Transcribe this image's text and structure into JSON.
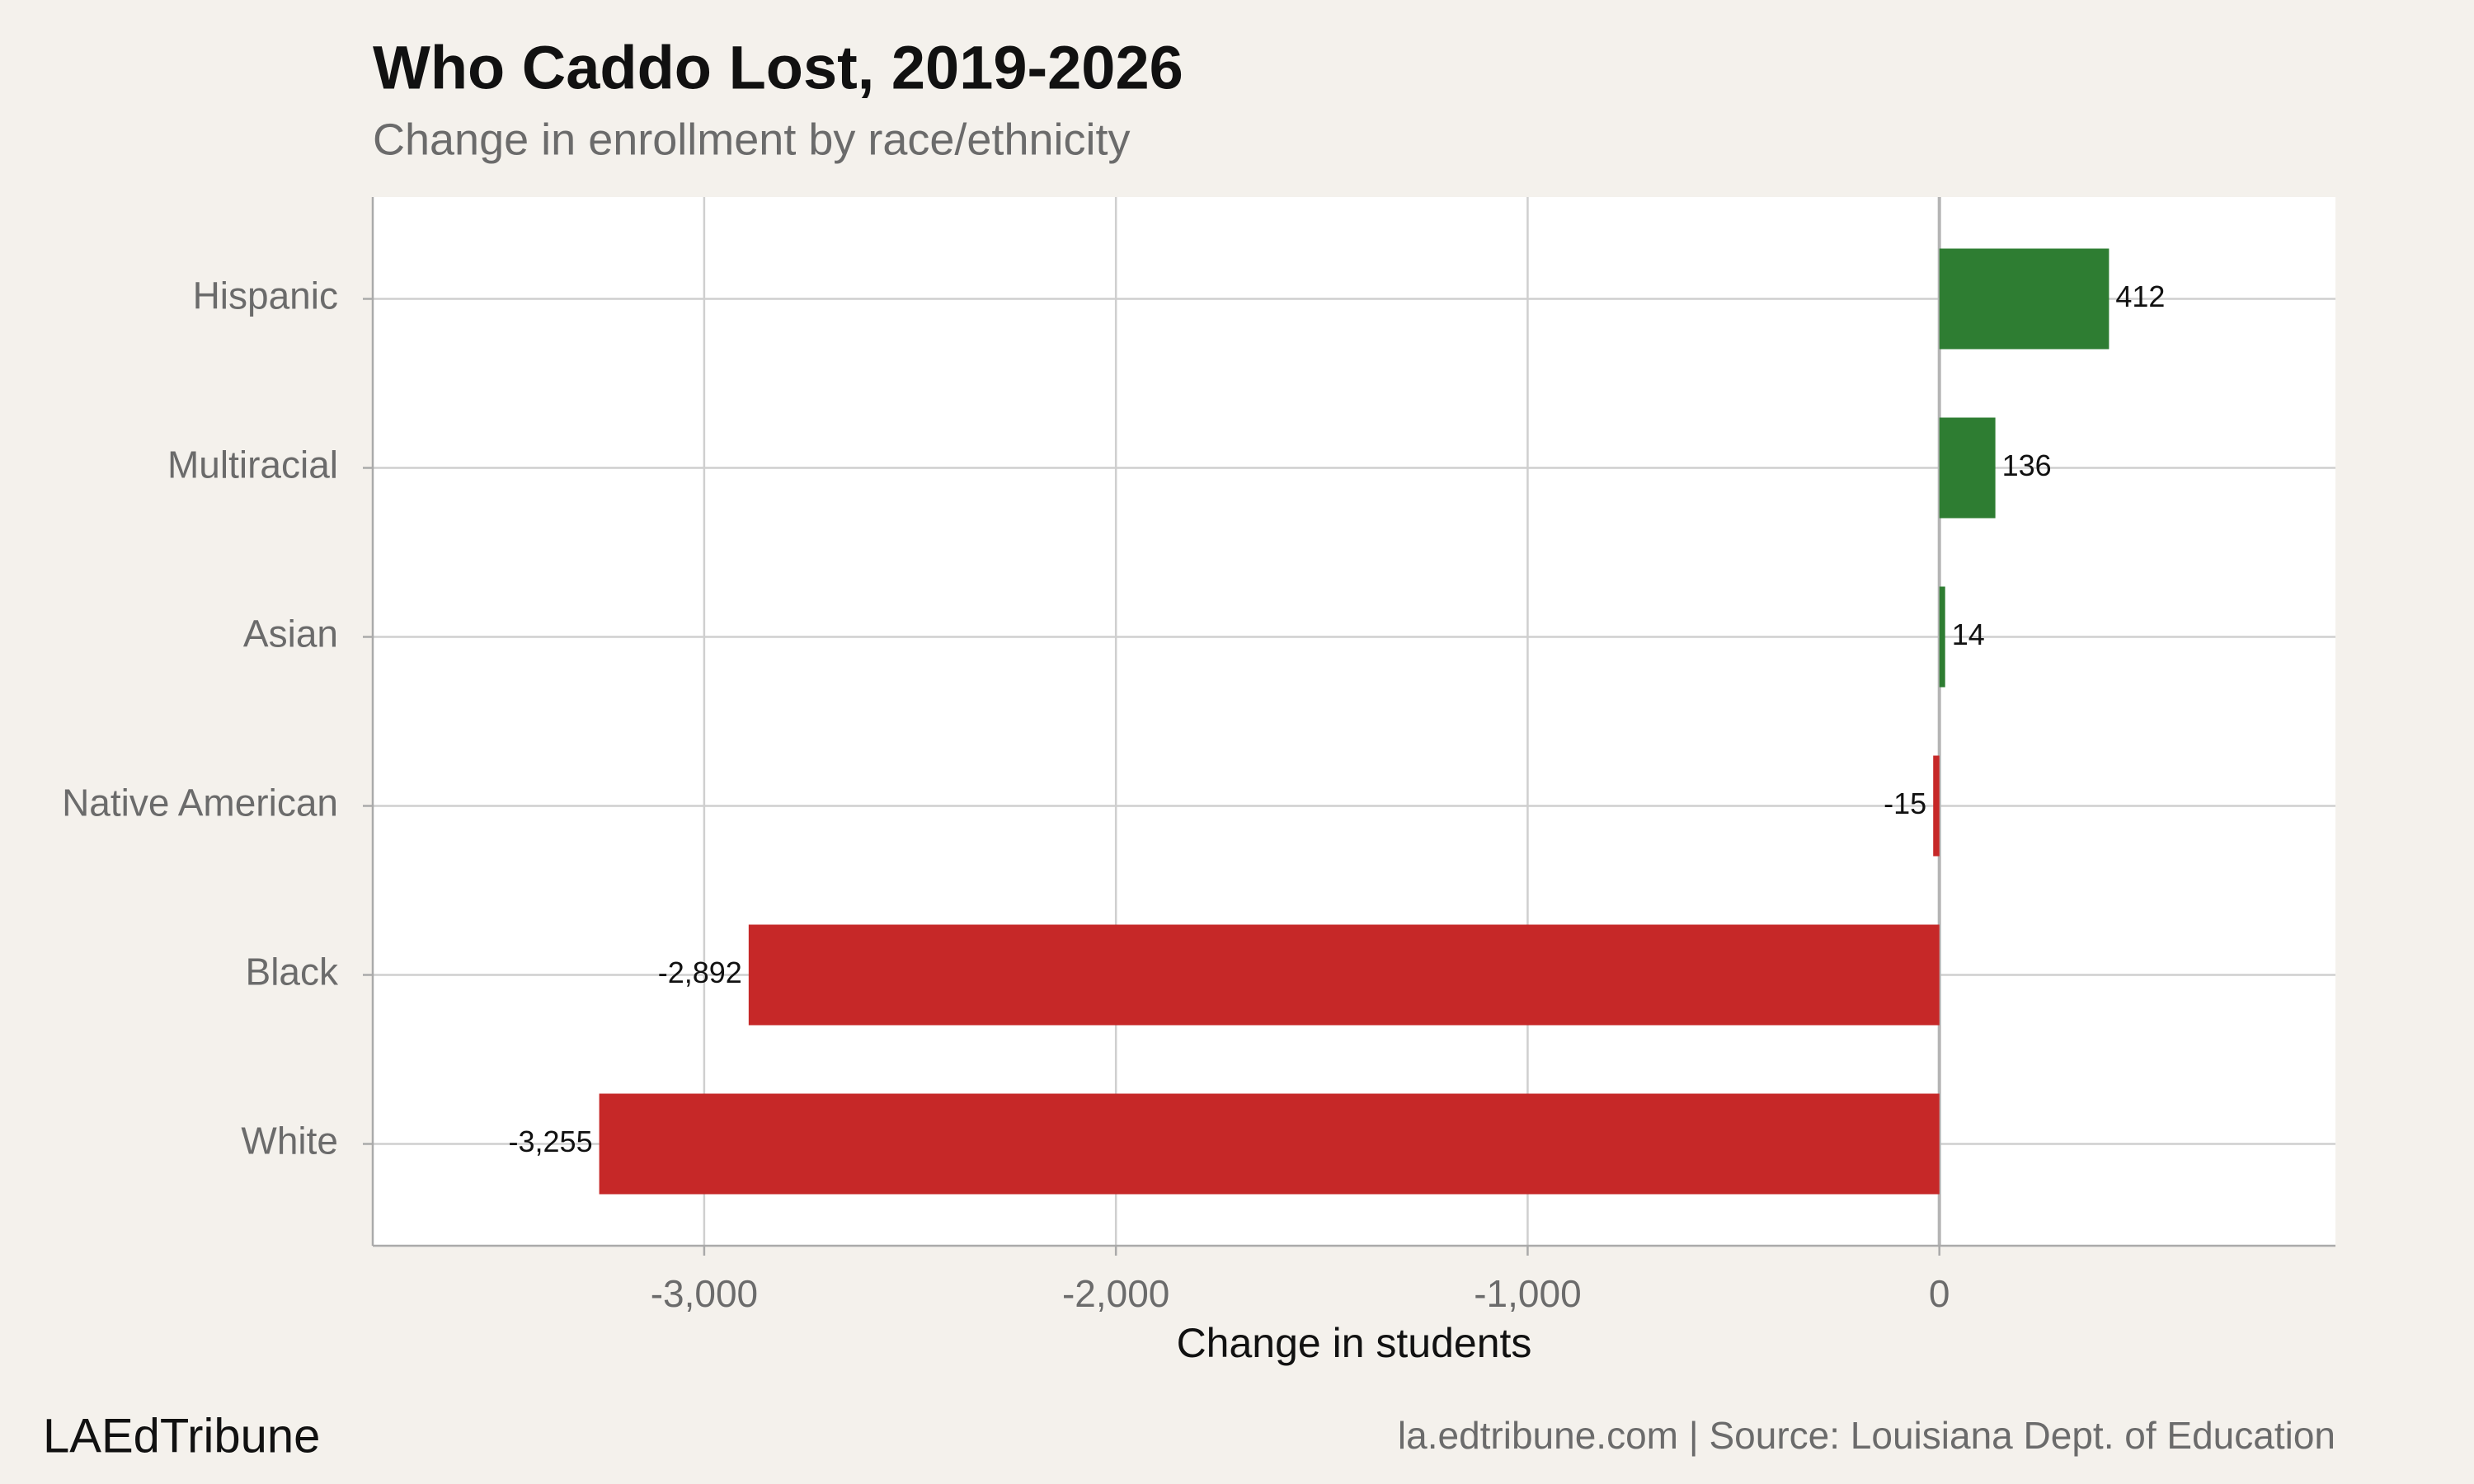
{
  "chart_data": {
    "type": "bar",
    "orientation": "horizontal",
    "title": "Who Caddo Lost, 2019-2026",
    "subtitle": "Change in enrollment by race/ethnicity",
    "x_label": "Change in students",
    "categories": [
      "Hispanic",
      "Multiracial",
      "Asian",
      "Native American",
      "Black",
      "White"
    ],
    "values": [
      412,
      136,
      14,
      -15,
      -2892,
      -3255
    ],
    "value_labels": [
      "412",
      "136",
      "14",
      "-15",
      "-2,892",
      "-3,255"
    ],
    "colors": [
      "#2e7d32",
      "#2e7d32",
      "#2e7d32",
      "#c62828",
      "#c62828",
      "#c62828"
    ],
    "xlim": [
      -3805,
      962
    ],
    "xticks": [
      {
        "value": -3000,
        "label": "-3,000"
      },
      {
        "value": -2000,
        "label": "-2,000"
      },
      {
        "value": -1000,
        "label": "-1,000"
      },
      0
    ],
    "grid": true,
    "brand": "LAEdTribune",
    "source": "la.edtribune.com | Source: Louisiana Dept. of Education"
  }
}
